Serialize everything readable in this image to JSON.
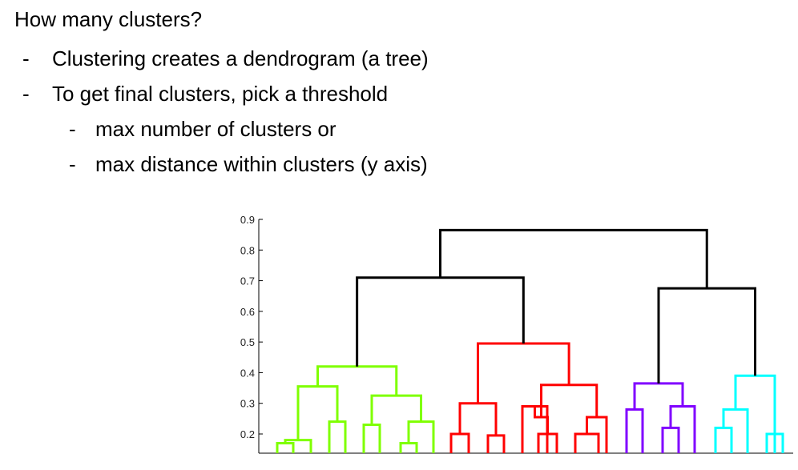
{
  "slide": {
    "title": "How many clusters?",
    "bullets": [
      {
        "marker": "-",
        "text": "Clustering creates a dendrogram (a tree)"
      },
      {
        "marker": "-",
        "text": "To get final clusters, pick a threshold"
      }
    ],
    "sub_bullets": [
      {
        "marker": "-",
        "text": "max number of clusters or"
      },
      {
        "marker": "-",
        "text": "max distance within clusters (y axis)"
      }
    ]
  },
  "chart_data": {
    "type": "dendrogram",
    "title": "",
    "xlabel": "",
    "ylabel": "",
    "ylim": [
      0.15,
      0.9
    ],
    "y_ticks": [
      "0.2",
      "0.3",
      "0.4",
      "0.5",
      "0.6",
      "0.7",
      "0.8",
      "0.9"
    ],
    "leaf_count": 32,
    "cluster_colors": {
      "green": "#7fff00",
      "red": "#ff0000",
      "purple": "#8000ff",
      "cyan": "#00ffff",
      "root": "#000000"
    },
    "merges": [
      {
        "id": "a1",
        "left": 1,
        "right": 2,
        "height": 0.17,
        "color": "green"
      },
      {
        "id": "a2",
        "left": "a1",
        "right": 3,
        "height": 0.18,
        "color": "green"
      },
      {
        "id": "a3",
        "left": 4,
        "right": 5,
        "height": 0.24,
        "color": "green"
      },
      {
        "id": "a4",
        "left": "a2",
        "right": "a3",
        "height": 0.355,
        "color": "green"
      },
      {
        "id": "a5",
        "left": 6,
        "right": 7,
        "height": 0.23,
        "color": "green"
      },
      {
        "id": "a6",
        "left": 8,
        "right": 9,
        "height": 0.17,
        "color": "green"
      },
      {
        "id": "a7",
        "left": "a6",
        "right": 10,
        "height": 0.24,
        "color": "green"
      },
      {
        "id": "a8",
        "left": "a5",
        "right": "a7",
        "height": 0.325,
        "color": "green"
      },
      {
        "id": "A",
        "left": "a4",
        "right": "a8",
        "height": 0.42,
        "color": "green"
      },
      {
        "id": "b1",
        "left": 11,
        "right": 12,
        "height": 0.2,
        "color": "red"
      },
      {
        "id": "b2",
        "left": 13,
        "right": 14,
        "height": 0.195,
        "color": "red"
      },
      {
        "id": "b3",
        "left": "b1",
        "right": "b2",
        "height": 0.3,
        "color": "red"
      },
      {
        "id": "b4",
        "left": 15,
        "right": 16,
        "height": 0.29,
        "color": "red"
      },
      {
        "id": "b5",
        "left": 17,
        "right": 18,
        "height": 0.2,
        "color": "red"
      },
      {
        "id": "b6",
        "left": "b4",
        "right": "b5",
        "height": 0.255,
        "color": "red"
      },
      {
        "id": "b7",
        "left": 19,
        "right": 20,
        "height": 0.2,
        "color": "red"
      },
      {
        "id": "b8",
        "left": 21,
        "right": "b7",
        "height": 0.255,
        "color": "red"
      },
      {
        "id": "b9",
        "left": "b6",
        "right": "b8",
        "height": 0.36,
        "color": "red"
      },
      {
        "id": "B",
        "left": "b3",
        "right": "b9",
        "height": 0.495,
        "color": "red"
      },
      {
        "id": "c1",
        "left": 22,
        "right": 23,
        "height": 0.28,
        "color": "purple"
      },
      {
        "id": "c2",
        "left": 24,
        "right": 25,
        "height": 0.22,
        "color": "purple"
      },
      {
        "id": "c3",
        "left": 26,
        "right": "c2",
        "height": 0.29,
        "color": "purple"
      },
      {
        "id": "C",
        "left": "c1",
        "right": "c3",
        "height": 0.365,
        "color": "purple"
      },
      {
        "id": "d1",
        "left": 27,
        "right": 28,
        "height": 0.22,
        "color": "cyan"
      },
      {
        "id": "d2",
        "left": 29,
        "right": "d1",
        "height": 0.28,
        "color": "cyan"
      },
      {
        "id": "d3",
        "left": 30,
        "right": 31,
        "height": 0.2,
        "color": "cyan"
      },
      {
        "id": "d4",
        "left": "d3",
        "right": 32,
        "height": 0.2,
        "color": "cyan"
      },
      {
        "id": "D",
        "left": "d2",
        "right": "d4",
        "height": 0.39,
        "color": "cyan"
      },
      {
        "id": "AB",
        "left": "A",
        "right": "B",
        "height": 0.71,
        "color": "root"
      },
      {
        "id": "CD",
        "left": "C",
        "right": "D",
        "height": 0.675,
        "color": "root"
      },
      {
        "id": "ROOT",
        "left": "AB",
        "right": "CD",
        "height": 0.865,
        "color": "root"
      }
    ]
  }
}
